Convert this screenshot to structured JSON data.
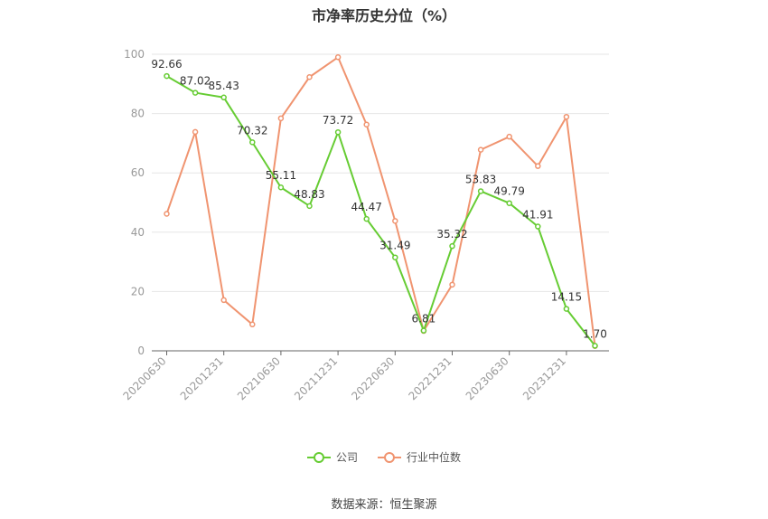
{
  "chart_data": {
    "type": "line",
    "title": "市净率历史分位（%）",
    "xlabel": "",
    "ylabel": "",
    "ylim": [
      0,
      100
    ],
    "yticks": [
      0,
      20,
      40,
      60,
      80,
      100
    ],
    "grid": true,
    "legend_position": "bottom",
    "x": [
      "20200630",
      "20200930",
      "20201231",
      "20210331",
      "20210630",
      "20210930",
      "20211231",
      "20220331",
      "20220630",
      "20220930",
      "20221231",
      "20230331",
      "20230630",
      "20230930",
      "20231231",
      "20240331"
    ],
    "xtick_labels": [
      "20200630",
      "20201231",
      "20210630",
      "20211231",
      "20220630",
      "20221231",
      "20230630",
      "20231231"
    ],
    "series": [
      {
        "name": "公司",
        "color": "#66cc33",
        "values": [
          92.66,
          87.02,
          85.43,
          70.32,
          55.11,
          48.83,
          73.72,
          44.47,
          31.49,
          6.81,
          35.32,
          53.83,
          49.79,
          41.91,
          14.15,
          1.7
        ],
        "labels": [
          "92.66",
          "87.02",
          "85.43",
          "70.32",
          "55.11",
          "48.83",
          "73.72",
          "44.47",
          "31.49",
          "6.81",
          "35.32",
          "53.83",
          "49.79",
          "41.91",
          "14.15",
          "1.70"
        ]
      },
      {
        "name": "行业中位数",
        "color": "#f09470",
        "values": [
          46.2,
          73.8,
          17.1,
          8.9,
          78.4,
          92.3,
          99.0,
          76.3,
          43.8,
          6.7,
          22.3,
          67.8,
          72.2,
          62.3,
          78.9,
          1.6
        ]
      }
    ]
  },
  "footer": {
    "source": "数据来源：恒生聚源"
  }
}
